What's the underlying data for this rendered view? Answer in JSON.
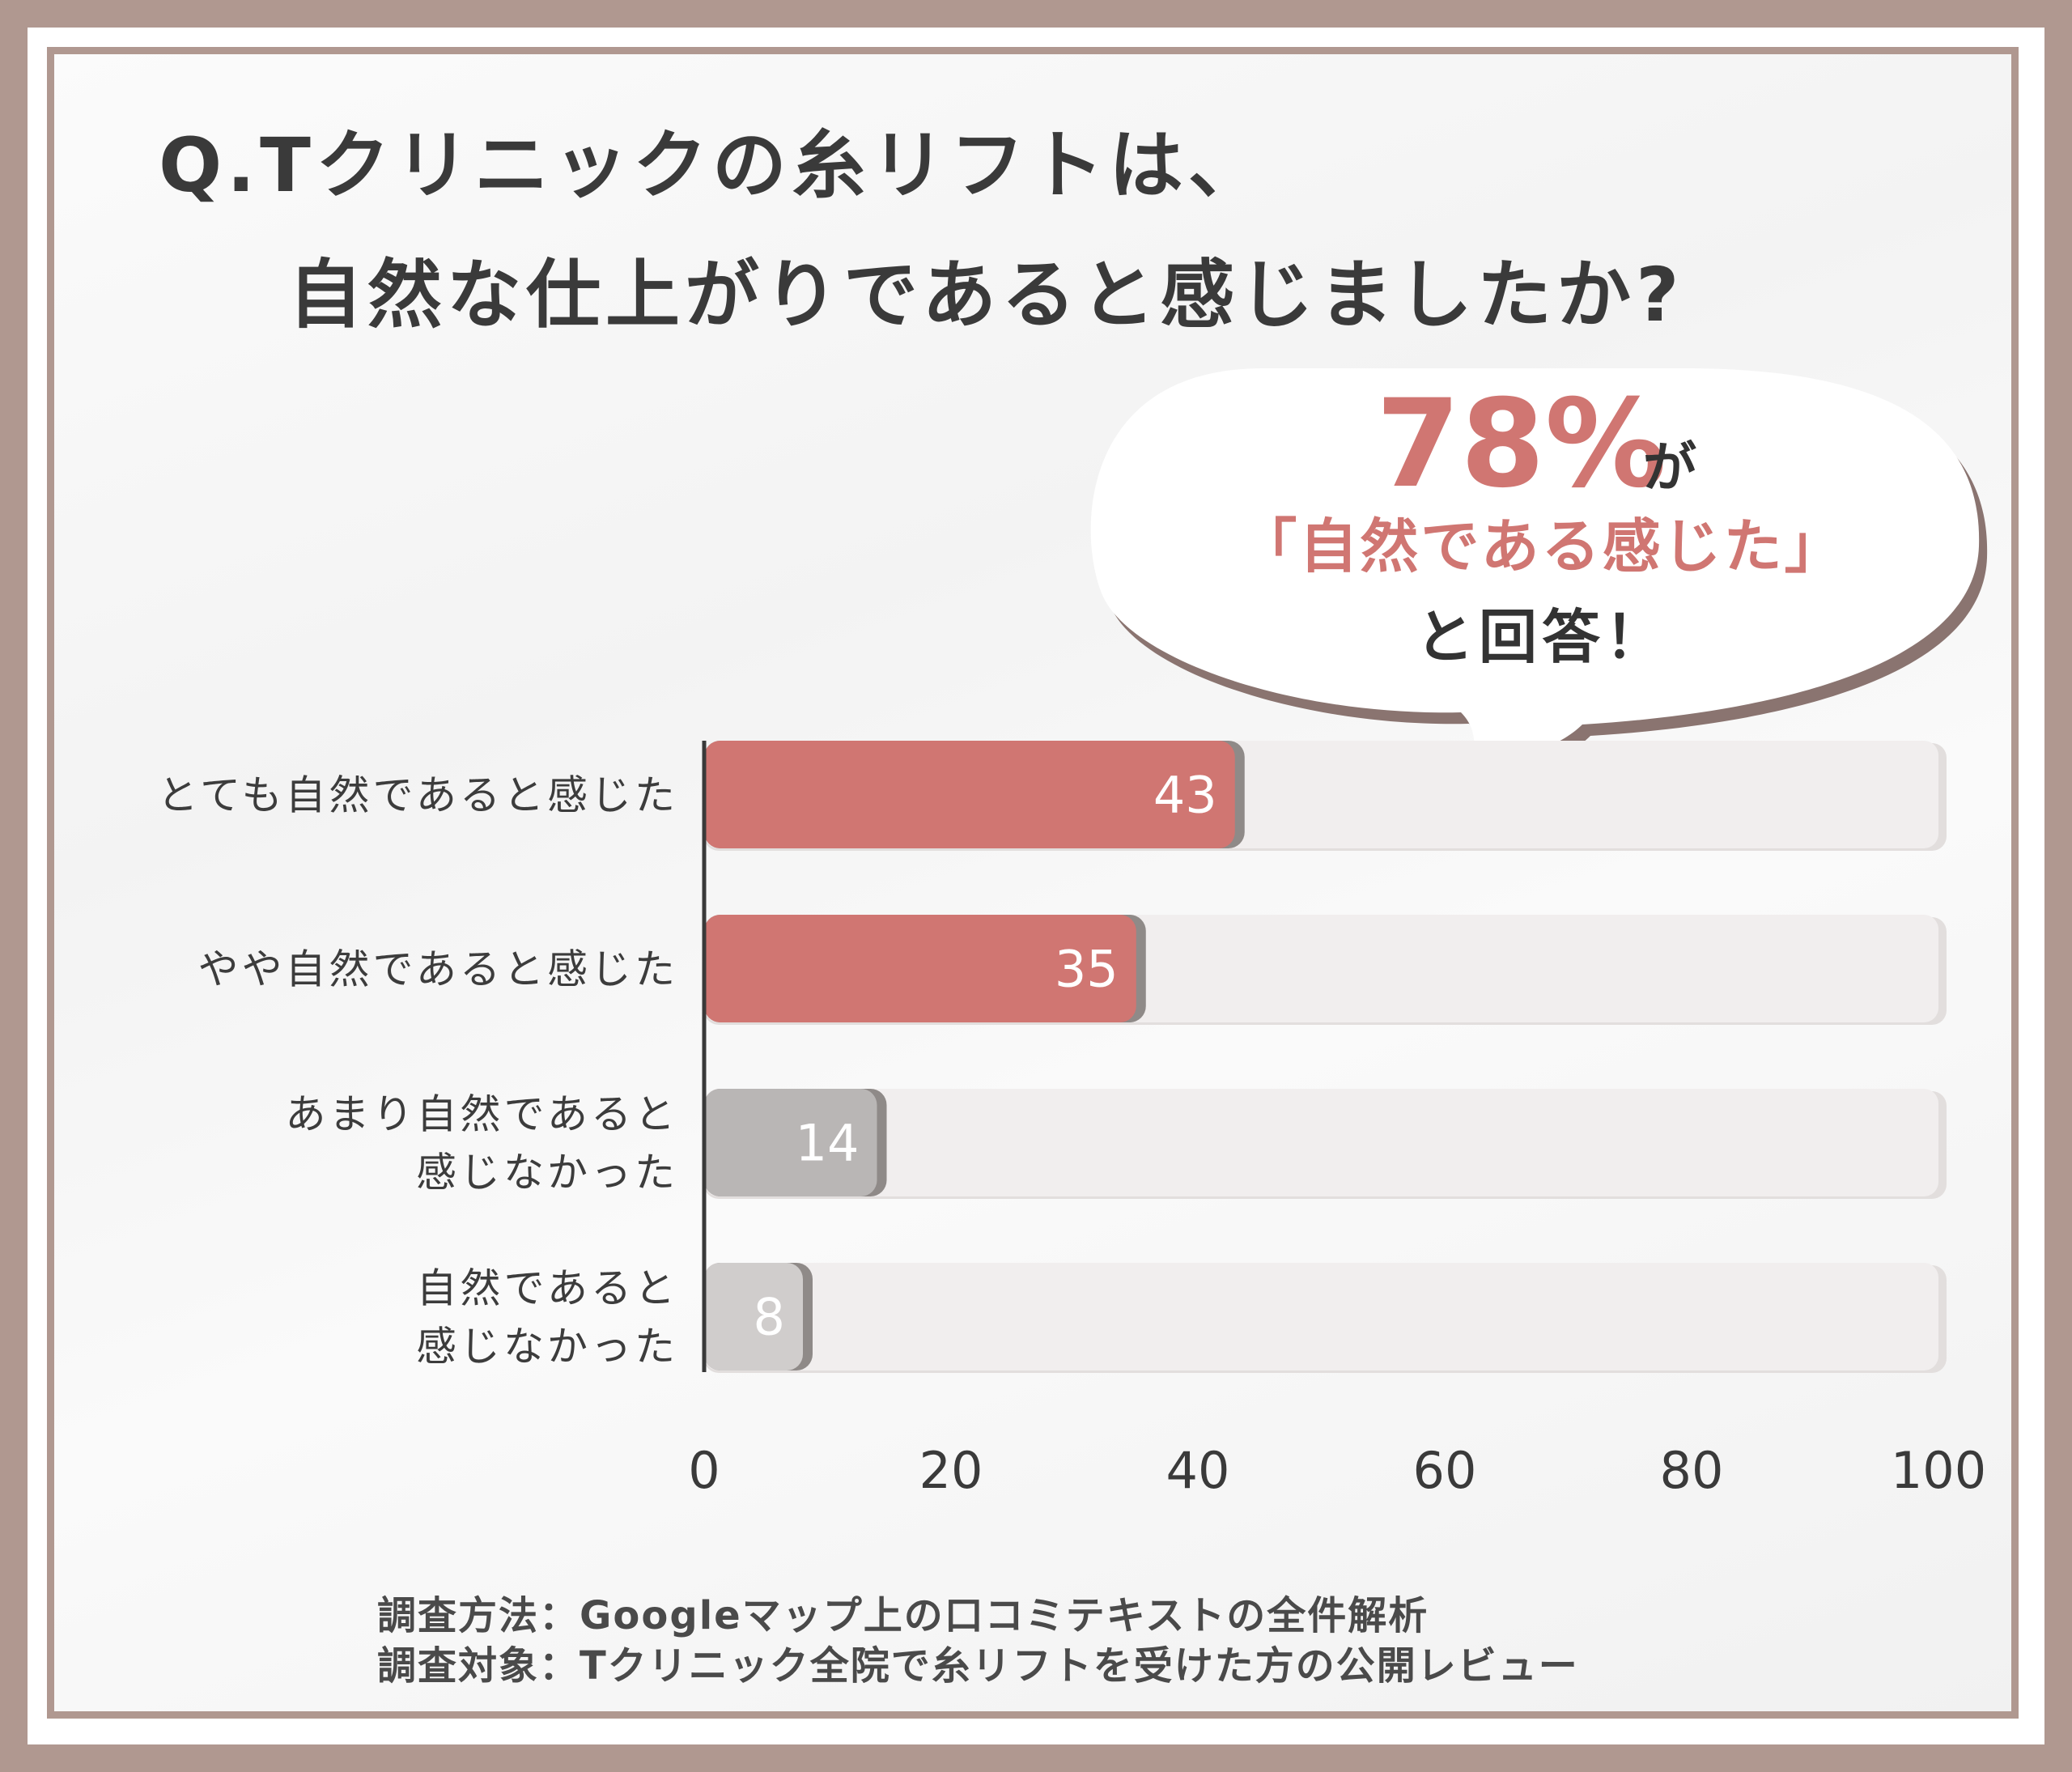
{
  "title": {
    "line1": "Q.Tクリニックの糸リフトは、",
    "line2": "自然な仕上がりであると感じましたか?"
  },
  "callout": {
    "percent": "78%",
    "suffix": "が",
    "quote": "「自然である感じた」",
    "tail": "と回答！",
    "colors": {
      "accent": "#d07672",
      "text": "#333333"
    }
  },
  "chart_data": {
    "type": "bar",
    "orientation": "horizontal",
    "categories": [
      [
        "とても自然であると感じた"
      ],
      [
        "やや自然であると感じた"
      ],
      [
        "あまり自然であると",
        "感じなかった"
      ],
      [
        "自然であると",
        "感じなかった"
      ]
    ],
    "values": [
      43,
      35,
      14,
      8
    ],
    "value_labels": [
      "43",
      "35",
      "14",
      "8"
    ],
    "xlim": [
      0,
      100
    ],
    "xticks": [
      "0",
      "20",
      "40",
      "60",
      "80",
      "100"
    ],
    "bar_colors": [
      "#d07672",
      "#d07672",
      "#b9b6b5",
      "#d0cdcc"
    ],
    "track_color": "#f1eeee",
    "grid": false
  },
  "footer": {
    "method": "調査方法：Googleマップ上の口コミテキストの全件解析",
    "target": "調査対象：Tクリニック全院で糸リフトを受けた方の公開レビュー"
  }
}
